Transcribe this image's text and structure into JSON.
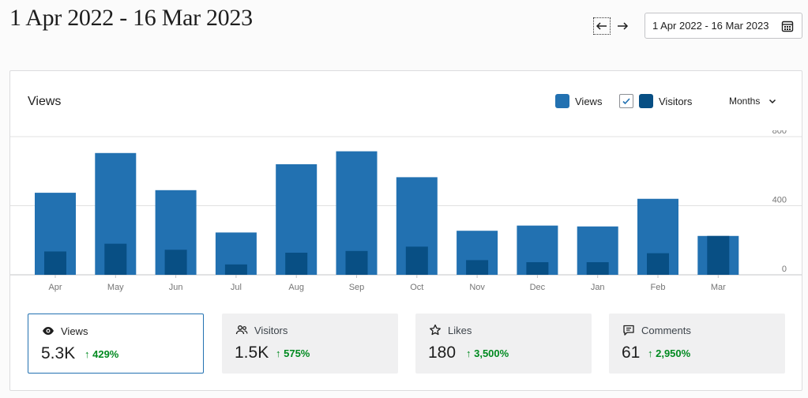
{
  "header": {
    "title": "1 Apr 2022 - 16 Mar 2023",
    "date_range": "1 Apr 2022 - 16 Mar 2023"
  },
  "icons": {
    "prev": "arrow-left-icon",
    "next": "arrow-right-icon",
    "calendar": "calendar-icon",
    "check": "checkmark-icon",
    "dropdown": "chevron-down-icon",
    "views": "eye-icon",
    "visitors": "people-icon",
    "likes": "star-icon",
    "comments": "comment-icon"
  },
  "card": {
    "title": "Views",
    "legend": {
      "views_label": "Views",
      "visitors_label": "Visitors",
      "visitors_checked": true
    },
    "period": "Months"
  },
  "colors": {
    "views": "#2271b1",
    "visitors": "#084f84",
    "trend_up": "#008a20",
    "active_border": "#2271b1"
  },
  "chart_data": {
    "type": "bar",
    "categories": [
      "Apr",
      "May",
      "Jun",
      "Jul",
      "Aug",
      "Sep",
      "Oct",
      "Nov",
      "Dec",
      "Jan",
      "Feb",
      "Mar"
    ],
    "series": [
      {
        "name": "Views",
        "values": [
          475,
          705,
          490,
          245,
          640,
          715,
          565,
          255,
          285,
          280,
          440,
          225
        ]
      },
      {
        "name": "Visitors",
        "values": [
          135,
          180,
          145,
          60,
          128,
          138,
          163,
          85,
          73,
          73,
          125,
          225
        ]
      }
    ],
    "yticks": [
      0,
      400,
      800
    ],
    "ylim": [
      0,
      800
    ],
    "grid": true
  },
  "stats": [
    {
      "label": "Views",
      "value": "5.3K",
      "trend": "↑ 429%",
      "active": true,
      "icon": "eye-icon"
    },
    {
      "label": "Visitors",
      "value": "1.5K",
      "trend": "↑ 575%",
      "active": false,
      "icon": "people-icon"
    },
    {
      "label": "Likes",
      "value": "180",
      "trend": "↑ 3,500%",
      "active": false,
      "icon": "star-icon"
    },
    {
      "label": "Comments",
      "value": "61",
      "trend": "↑ 2,950%",
      "active": false,
      "icon": "comment-icon"
    }
  ]
}
